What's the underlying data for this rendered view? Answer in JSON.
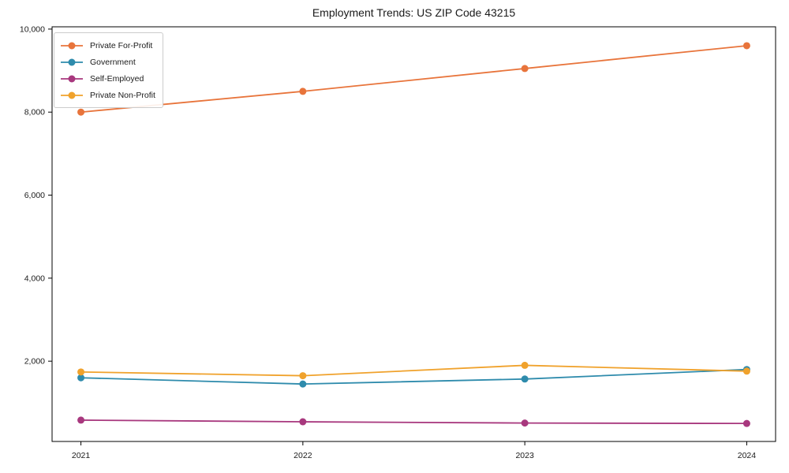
{
  "chart_data": {
    "type": "line",
    "title": "Employment Trends: US ZIP Code 43215",
    "xlabel": "",
    "ylabel": "",
    "x": [
      2021,
      2022,
      2023,
      2024
    ],
    "x_tick_labels": [
      "2021",
      "2022",
      "2023",
      "2024"
    ],
    "yticks": [
      2000,
      4000,
      6000,
      8000,
      10000
    ],
    "ytick_labels": [
      "2,000",
      "4,000",
      "6,000",
      "8,000",
      "10,000"
    ],
    "xlim": [
      2020.87,
      2024.13
    ],
    "ylim": [
      66,
      10055
    ],
    "grid": false,
    "legend_position": "upper left",
    "axis_color": "#000000",
    "background_color": "#ffffff",
    "series": [
      {
        "name": "Private For-Profit",
        "color": "#e8743b",
        "values": [
          8000,
          8500,
          9050,
          9600
        ]
      },
      {
        "name": "Government",
        "color": "#2e8bac",
        "values": [
          1600,
          1450,
          1570,
          1800
        ]
      },
      {
        "name": "Self-Employed",
        "color": "#a8387e",
        "values": [
          580,
          540,
          510,
          500
        ]
      },
      {
        "name": "Private Non-Profit",
        "color": "#f0a22c",
        "values": [
          1740,
          1650,
          1900,
          1760
        ]
      }
    ]
  }
}
